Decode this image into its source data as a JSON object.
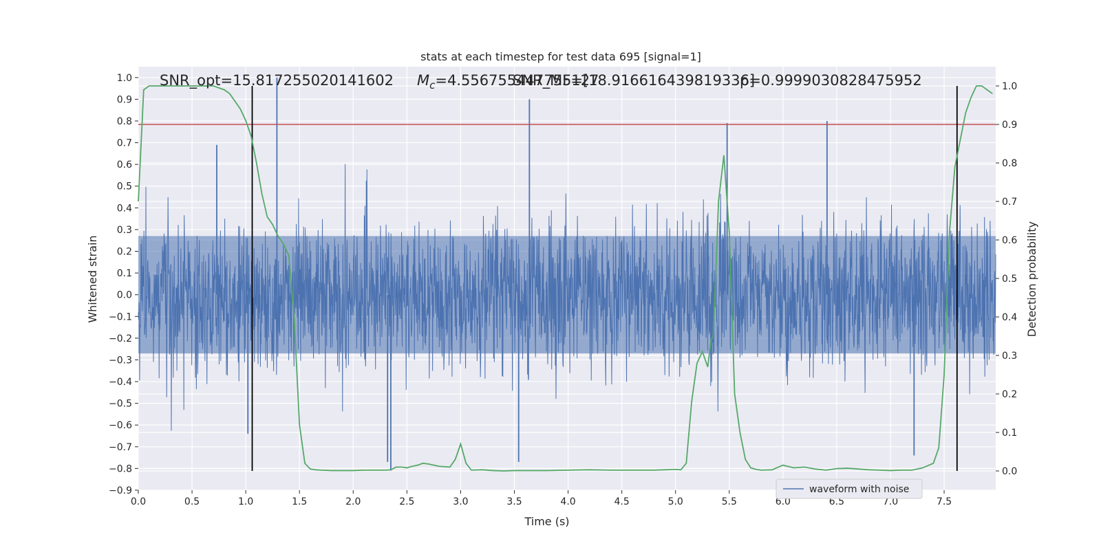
{
  "chart_data": {
    "type": "line",
    "title": "stats at each timestep for test data 695 [signal=1]",
    "annotations": {
      "snr_opt": "SNR_opt=15.817255020141602",
      "mc_prefix": "M",
      "mc_sub": "c",
      "mc_value": "=4.556755447755127",
      "snr_mf": "SNR_MF=[18.916616439819336]",
      "p": "p=0.9999030828475952"
    },
    "xlabel": "Time (s)",
    "ylabel_left": "Whitened strain",
    "ylabel_right": "Detection probability",
    "xlim": [
      0.0,
      7.98
    ],
    "ylim_left": [
      -0.9,
      1.05
    ],
    "ylim_right": [
      -0.05,
      1.05
    ],
    "x_ticks": [
      "0.0",
      "0.5",
      "1.0",
      "1.5",
      "2.0",
      "2.5",
      "3.0",
      "3.5",
      "4.0",
      "4.5",
      "5.0",
      "5.5",
      "6.0",
      "6.5",
      "7.0",
      "7.5"
    ],
    "y_ticks_left": [
      "−0.9",
      "−0.8",
      "−0.7",
      "−0.6",
      "−0.5",
      "−0.4",
      "−0.3",
      "−0.2",
      "−0.1",
      "0.0",
      "0.1",
      "0.2",
      "0.3",
      "0.4",
      "0.5",
      "0.6",
      "0.7",
      "0.8",
      "0.9",
      "1.0"
    ],
    "y_ticks_right": [
      "0.0",
      "0.1",
      "0.2",
      "0.3",
      "0.4",
      "0.5",
      "0.6",
      "0.7",
      "0.8",
      "0.9",
      "1.0"
    ],
    "grid": true,
    "legend": {
      "position": "lower-right",
      "entries": [
        "waveform with noise"
      ]
    },
    "threshold": {
      "value_right_axis": 0.9,
      "color": "#c44e52"
    },
    "markers": [
      1.06,
      7.62
    ],
    "colors": {
      "waveform": "#4c72b0",
      "probability": "#55a868",
      "threshold": "#c44e52",
      "marker": "#000000",
      "plot_bg": "#eaeaf2"
    },
    "series": [
      {
        "name": "waveform with noise",
        "kind": "noise",
        "envelope_typical": 0.27,
        "spikes": [
          {
            "x": 1.29,
            "y": 1.0
          },
          {
            "x": 3.64,
            "y": 0.9
          },
          {
            "x": 5.48,
            "y": 0.79
          },
          {
            "x": 6.41,
            "y": 0.8
          },
          {
            "x": 0.73,
            "y": 0.69
          },
          {
            "x": 2.32,
            "y": -0.77
          },
          {
            "x": 2.35,
            "y": -0.81
          },
          {
            "x": 3.54,
            "y": -0.77
          },
          {
            "x": 7.22,
            "y": -0.74
          },
          {
            "x": 1.02,
            "y": -0.64
          }
        ]
      },
      {
        "name": "",
        "kind": "probability",
        "x": [
          0.0,
          0.05,
          0.1,
          0.2,
          0.3,
          0.4,
          0.5,
          0.6,
          0.7,
          0.8,
          0.85,
          0.9,
          0.95,
          1.0,
          1.05,
          1.1,
          1.15,
          1.2,
          1.25,
          1.3,
          1.35,
          1.4,
          1.45,
          1.5,
          1.55,
          1.6,
          1.65,
          1.7,
          1.8,
          1.9,
          2.0,
          2.1,
          2.2,
          2.3,
          2.35,
          2.4,
          2.45,
          2.5,
          2.55,
          2.6,
          2.65,
          2.7,
          2.8,
          2.9,
          2.95,
          3.0,
          3.05,
          3.1,
          3.2,
          3.3,
          3.4,
          3.5,
          3.6,
          3.8,
          4.0,
          4.2,
          4.4,
          4.6,
          4.8,
          4.9,
          5.0,
          5.05,
          5.1,
          5.15,
          5.2,
          5.25,
          5.3,
          5.33,
          5.35,
          5.38,
          5.4,
          5.45,
          5.5,
          5.55,
          5.6,
          5.65,
          5.7,
          5.75,
          5.8,
          5.9,
          6.0,
          6.1,
          6.2,
          6.3,
          6.4,
          6.5,
          6.6,
          6.7,
          6.8,
          6.9,
          7.0,
          7.1,
          7.2,
          7.3,
          7.4,
          7.45,
          7.5,
          7.55,
          7.6,
          7.65,
          7.7,
          7.75,
          7.8,
          7.85,
          7.9,
          7.95
        ],
        "y": [
          0.7,
          0.99,
          1.0,
          1.0,
          1.0,
          1.0,
          1.0,
          1.0,
          1.0,
          0.99,
          0.98,
          0.96,
          0.94,
          0.91,
          0.87,
          0.8,
          0.72,
          0.66,
          0.64,
          0.61,
          0.59,
          0.56,
          0.4,
          0.12,
          0.02,
          0.005,
          0.003,
          0.002,
          0.001,
          0.001,
          0.001,
          0.002,
          0.002,
          0.002,
          0.003,
          0.01,
          0.01,
          0.008,
          0.012,
          0.015,
          0.02,
          0.018,
          0.012,
          0.01,
          0.03,
          0.07,
          0.02,
          0.002,
          0.003,
          0.001,
          0.0,
          0.001,
          0.001,
          0.001,
          0.002,
          0.003,
          0.002,
          0.002,
          0.002,
          0.003,
          0.004,
          0.003,
          0.02,
          0.18,
          0.28,
          0.31,
          0.27,
          0.34,
          0.35,
          0.55,
          0.7,
          0.82,
          0.62,
          0.2,
          0.1,
          0.03,
          0.008,
          0.004,
          0.002,
          0.003,
          0.015,
          0.008,
          0.01,
          0.005,
          0.002,
          0.006,
          0.007,
          0.005,
          0.003,
          0.002,
          0.001,
          0.002,
          0.002,
          0.008,
          0.02,
          0.06,
          0.25,
          0.62,
          0.79,
          0.86,
          0.93,
          0.97,
          1.0,
          1.0,
          0.99,
          0.98
        ]
      }
    ]
  }
}
